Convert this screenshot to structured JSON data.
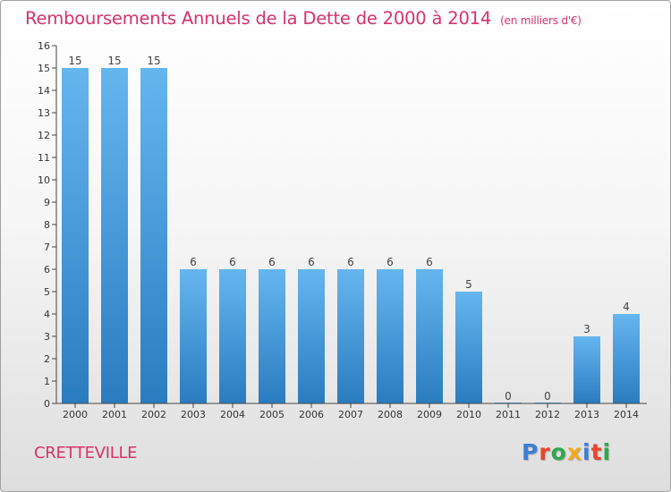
{
  "title": "Remboursements Annuels de la Dette de 2000 à 2014",
  "title_unit": "(en milliers d'€)",
  "commune": "CRETTEVILLE",
  "logo": {
    "text": "Proxiti",
    "colors": [
      "#3b7fd4",
      "#e8452c",
      "#2ea84a",
      "#f2a91e",
      "#3b7fd4",
      "#e8452c",
      "#2ea84a"
    ]
  },
  "colors": {
    "title": "#d6336c",
    "bar_top": "#65b6ef",
    "bar_bottom": "#2a7cc0",
    "axis": "#444444"
  },
  "chart_data": {
    "type": "bar",
    "title": "Remboursements Annuels de la Dette de 2000 à 2014",
    "xlabel": "",
    "ylabel": "",
    "categories": [
      "2000",
      "2001",
      "2002",
      "2003",
      "2004",
      "2005",
      "2006",
      "2007",
      "2008",
      "2009",
      "2010",
      "2011",
      "2012",
      "2013",
      "2014"
    ],
    "values": [
      15,
      15,
      15,
      6,
      6,
      6,
      6,
      6,
      6,
      6,
      5,
      0,
      0,
      3,
      4
    ],
    "data_labels": [
      "15",
      "15",
      "15",
      "6",
      "6",
      "6",
      "6",
      "6",
      "6",
      "6",
      "5",
      "0",
      "0",
      "3",
      "4"
    ],
    "yticks": [
      "0",
      "1",
      "2",
      "3",
      "4",
      "5",
      "6",
      "7",
      "8",
      "9",
      "10",
      "11",
      "12",
      "13",
      "14",
      "15",
      "16"
    ],
    "ylim": [
      0,
      16
    ],
    "grid": false,
    "legend": "none"
  }
}
